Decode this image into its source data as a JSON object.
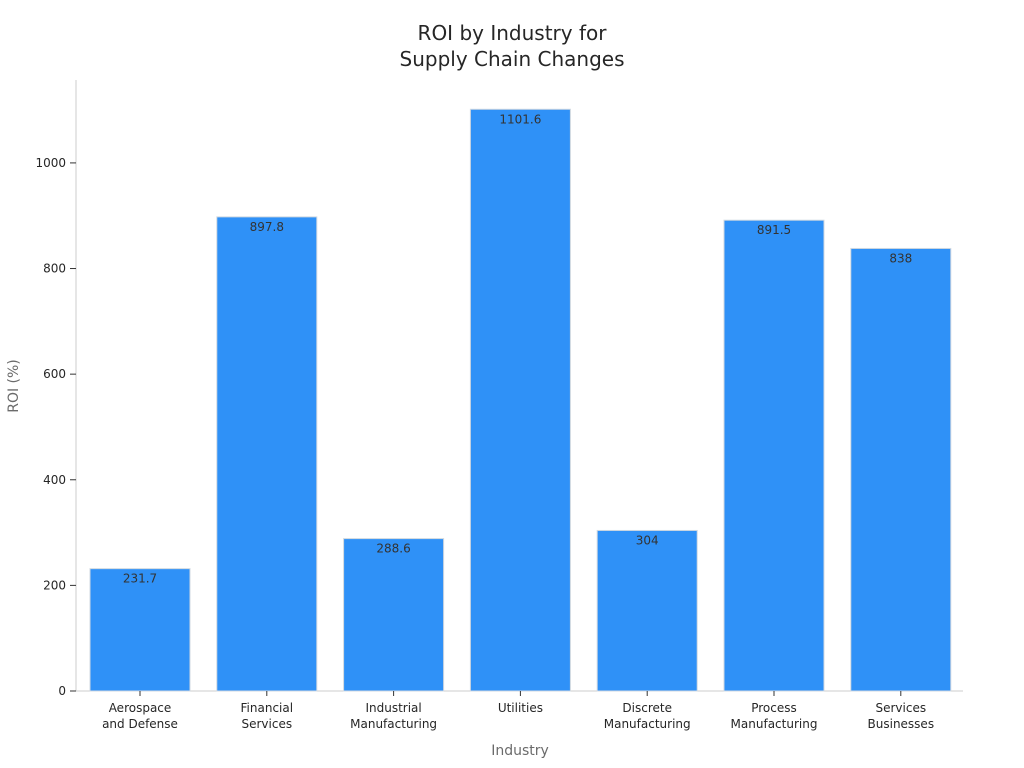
{
  "chart_data": {
    "type": "bar",
    "title_lines": [
      "ROI by Industry for",
      "Supply Chain Changes"
    ],
    "xlabel": "Industry",
    "ylabel": "ROI (%)",
    "categories": [
      [
        "Aerospace",
        "and Defense"
      ],
      [
        "Financial",
        "Services"
      ],
      [
        "Industrial",
        "Manufacturing"
      ],
      [
        "Utilities"
      ],
      [
        "Discrete",
        "Manufacturing"
      ],
      [
        "Process",
        "Manufacturing"
      ],
      [
        "Services",
        "Businesses"
      ]
    ],
    "values": [
      231.7,
      897.8,
      288.6,
      1101.6,
      304,
      891.5,
      838
    ],
    "value_labels": [
      "231.7",
      "897.8",
      "288.6",
      "1101.6",
      "304",
      "891.5",
      "838"
    ],
    "yticks": [
      0,
      200,
      400,
      600,
      800,
      1000
    ],
    "ytick_labels": [
      "0",
      "200",
      "400",
      "600",
      "800",
      "1000"
    ],
    "ylim": [
      0,
      1157
    ],
    "grid": false,
    "legend": "none",
    "colors": {
      "bar": "#2f91f7",
      "bar_edge": "#d0d8e0",
      "axis": "#cccccc",
      "text": "#262626"
    }
  }
}
